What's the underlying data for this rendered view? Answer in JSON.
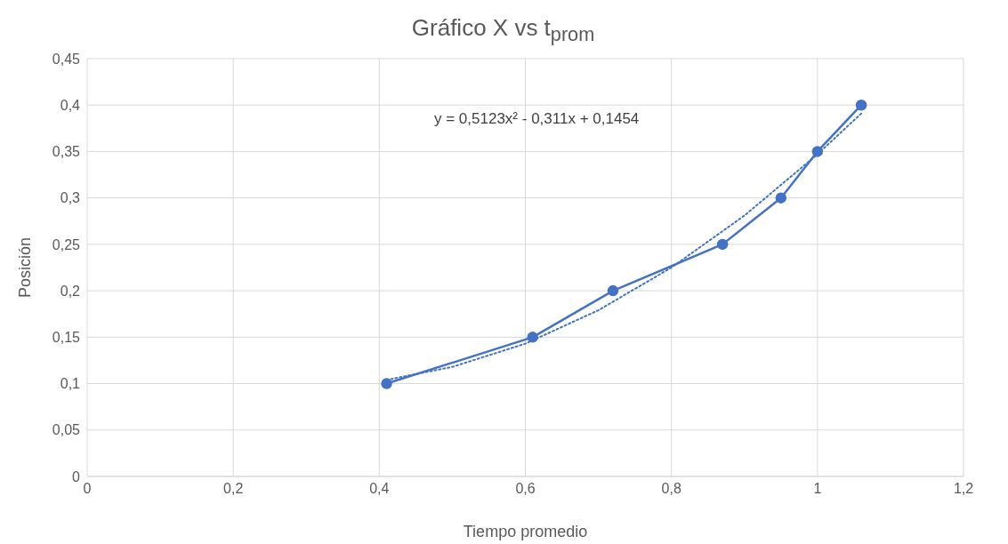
{
  "chart_data": {
    "type": "line",
    "title": "Gráfico X vs t$_{prom}$",
    "xlabel": "Tiempo promedio",
    "ylabel": "Posición",
    "xlim": [
      0,
      1.2
    ],
    "xticks": [
      0,
      {
        "value": 0.2,
        "label": "0,2"
      },
      {
        "value": 0.4,
        "label": "0,4"
      },
      {
        "value": 0.6,
        "label": "0,6"
      },
      {
        "value": 0.8,
        "label": "0,8"
      },
      1,
      {
        "value": 1.2,
        "label": "1,2"
      }
    ],
    "ylim": [
      0,
      0.45
    ],
    "yticks": [
      0,
      {
        "value": 0.05,
        "label": "0,05"
      },
      {
        "value": 0.1,
        "label": "0,1"
      },
      {
        "value": 0.15,
        "label": "0,15"
      },
      {
        "value": 0.2,
        "label": "0,2"
      },
      {
        "value": 0.25,
        "label": "0,25"
      },
      {
        "value": 0.3,
        "label": "0,3"
      },
      {
        "value": 0.35,
        "label": "0,35"
      },
      {
        "value": 0.4,
        "label": "0,4"
      },
      {
        "value": 0.45,
        "label": "0,45"
      }
    ],
    "grid": true,
    "annotations": [
      "y = 0,5123x² - 0,311x + 0,1454"
    ],
    "series": [
      {
        "color": "#4472c4",
        "marker": "circle",
        "line_style": "solid",
        "x": [
          0.41,
          0.61,
          0.72,
          0.87,
          0.95,
          1.0,
          1.06
        ],
        "values": [
          0.1,
          0.15,
          0.2,
          0.25,
          0.3,
          0.35,
          0.4
        ]
      },
      {
        "color": "#4472c4",
        "marker": "none",
        "line_style": "dotted",
        "x": [
          0.41,
          0.5,
          0.6,
          0.7,
          0.8,
          0.9,
          1.0,
          1.06
        ],
        "values": [
          0.104,
          0.118,
          0.143,
          0.179,
          0.225,
          0.281,
          0.347,
          0.391
        ]
      }
    ]
  }
}
